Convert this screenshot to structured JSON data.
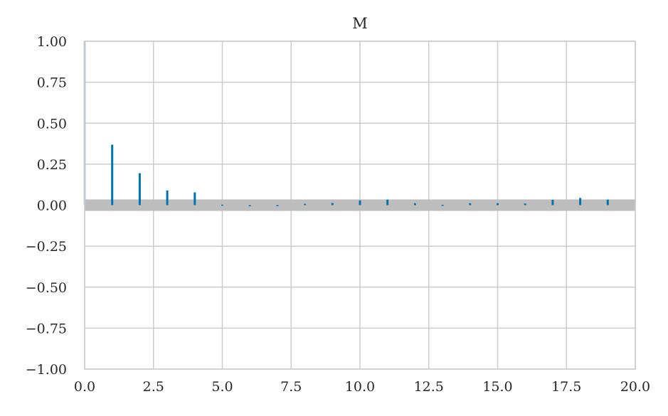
{
  "chart_data": {
    "type": "bar",
    "title": "M",
    "xlabel": "",
    "ylabel": "",
    "xlim": [
      0,
      20
    ],
    "ylim": [
      -1,
      1
    ],
    "grid": true,
    "x_ticks": [
      "0.0",
      "2.5",
      "5.0",
      "7.5",
      "10.0",
      "12.5",
      "15.0",
      "17.5",
      "20.0"
    ],
    "y_ticks": [
      "1.00",
      "0.75",
      "0.50",
      "0.25",
      "0.00",
      "−0.25",
      "−0.50",
      "−0.75",
      "−1.00"
    ],
    "lags": [
      0,
      1,
      2,
      3,
      4,
      5,
      6,
      7,
      8,
      9,
      10,
      11,
      12,
      13,
      14,
      15,
      16,
      17,
      18,
      19
    ],
    "values": [
      1.0,
      0.369,
      0.195,
      0.09,
      0.078,
      0.003,
      -0.005,
      -0.003,
      0.008,
      0.013,
      0.029,
      0.034,
      0.012,
      0.002,
      0.012,
      0.012,
      0.01,
      0.033,
      0.044,
      0.034
    ],
    "confidence_band": [
      -0.035,
      0.035
    ],
    "colors": {
      "bar": "#0173b2",
      "band": "#bdbdbd",
      "grid": "#cccccc"
    }
  }
}
